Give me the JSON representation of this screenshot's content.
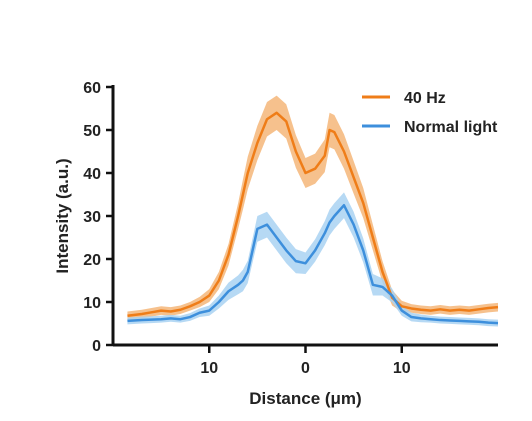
{
  "chart_data": {
    "type": "line",
    "xlabel": "Distance (μm)",
    "ylabel": "Intensity (a.u.)",
    "xlim": [
      -20,
      20
    ],
    "ylim": [
      0,
      60
    ],
    "x_ticks": [
      {
        "value": -10,
        "label": "10"
      },
      {
        "value": 0,
        "label": "0"
      },
      {
        "value": 10,
        "label": "10"
      }
    ],
    "y_ticks": [
      0,
      10,
      20,
      30,
      40,
      50,
      60
    ],
    "legend_position": "top-right",
    "grid": false,
    "x": [
      -18.5,
      -17,
      -16,
      -15,
      -14,
      -13,
      -12,
      -11,
      -10,
      -9,
      -8,
      -7,
      -6.5,
      -6,
      -5,
      -4,
      -3,
      -2,
      -1,
      0,
      1,
      2,
      2.5,
      3,
      4,
      5,
      6,
      7,
      8,
      9,
      10,
      11,
      12,
      13,
      14,
      15,
      16,
      17,
      18,
      19,
      20
    ],
    "series": [
      {
        "name": "40 Hz",
        "color": "#ef7d18",
        "band_color": "#f5b679",
        "values": [
          6.8,
          7.2,
          7.6,
          8.0,
          7.8,
          8.2,
          9.0,
          10.0,
          11.5,
          15.0,
          21.0,
          30.0,
          35.0,
          40.0,
          47.0,
          52.5,
          54.0,
          52.0,
          45.0,
          40.0,
          41.0,
          44.0,
          50.0,
          49.5,
          45.0,
          39.0,
          33.0,
          25.0,
          17.0,
          11.0,
          9.0,
          8.5,
          8.2,
          8.0,
          8.3,
          8.0,
          8.2,
          8.0,
          8.3,
          8.6,
          8.8
        ],
        "band": [
          1.0,
          1.0,
          1.0,
          1.0,
          1.0,
          1.0,
          1.0,
          1.2,
          1.5,
          2.0,
          2.5,
          3.0,
          3.5,
          3.8,
          4.0,
          4.0,
          4.0,
          4.0,
          3.8,
          3.5,
          3.5,
          3.8,
          4.0,
          4.0,
          4.0,
          3.8,
          3.5,
          3.0,
          2.5,
          1.8,
          1.3,
          1.0,
          1.0,
          1.0,
          1.0,
          1.0,
          1.0,
          1.0,
          1.0,
          1.0,
          1.0
        ]
      },
      {
        "name": "Normal light",
        "color": "#3d8fdc",
        "band_color": "#a9d2f2",
        "values": [
          5.6,
          5.8,
          5.9,
          6.0,
          6.2,
          6.0,
          6.5,
          7.5,
          8.0,
          10.0,
          12.5,
          14.0,
          15.0,
          17.0,
          27.0,
          28.0,
          25.0,
          22.0,
          19.5,
          19.0,
          22.0,
          26.0,
          28.5,
          30.0,
          32.5,
          28.0,
          22.0,
          14.0,
          13.5,
          11.5,
          8.0,
          6.5,
          6.2,
          6.0,
          5.8,
          5.7,
          5.6,
          5.5,
          5.4,
          5.2,
          5.1
        ],
        "band": [
          0.8,
          0.8,
          0.8,
          0.8,
          0.8,
          0.8,
          0.9,
          1.0,
          1.2,
          1.5,
          2.0,
          2.2,
          2.5,
          2.6,
          3.0,
          3.0,
          3.0,
          3.0,
          2.8,
          2.5,
          2.6,
          2.8,
          3.0,
          3.0,
          3.0,
          3.0,
          2.8,
          2.5,
          2.0,
          1.6,
          1.2,
          1.0,
          0.9,
          0.8,
          0.8,
          0.8,
          0.8,
          0.8,
          0.8,
          0.8,
          0.8
        ]
      }
    ]
  }
}
